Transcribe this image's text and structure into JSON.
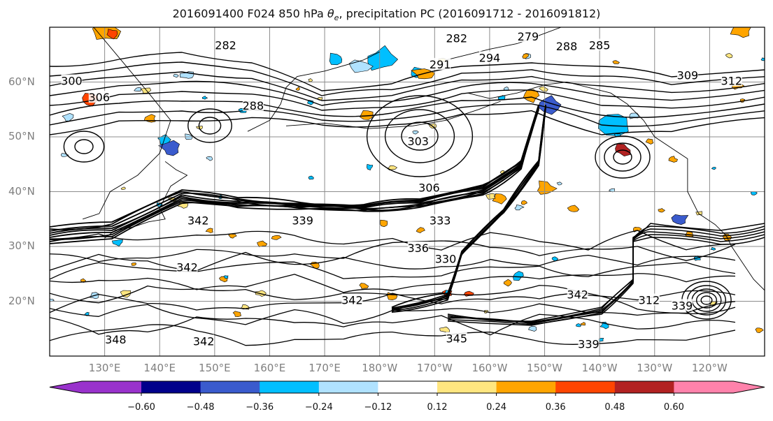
{
  "title": "2016091400 F024 850 hPa θe, precipitation PC (2016091712 - 2016091812)",
  "lat_labels": [
    {
      "text": "60°N",
      "lat": 60
    },
    {
      "text": "50°N",
      "lat": 50
    },
    {
      "text": "40°N",
      "lat": 40
    },
    {
      "text": "30°N",
      "lat": 30
    },
    {
      "text": "20°N",
      "lat": 20
    }
  ],
  "lon_labels": [
    {
      "text": "130°E",
      "lon": 130
    },
    {
      "text": "140°E",
      "lon": 140
    },
    {
      "text": "150°E",
      "lon": 150
    },
    {
      "text": "160°E",
      "lon": 160
    },
    {
      "text": "170°E",
      "lon": 170
    },
    {
      "text": "180°W",
      "lon": 180
    },
    {
      "text": "170°W",
      "lon": 190
    },
    {
      "text": "160°W",
      "lon": 200
    },
    {
      "text": "150°W",
      "lon": 210
    },
    {
      "text": "140°W",
      "lon": 220
    },
    {
      "text": "130°W",
      "lon": 230
    },
    {
      "text": "120°W",
      "lon": 240
    }
  ],
  "map_extent": {
    "lon_min": 120,
    "lon_max": 250,
    "lat_min": 10,
    "lat_max": 70
  },
  "contour_labels": [
    {
      "text": "282",
      "lon": 152,
      "lat": 66.5
    },
    {
      "text": "282",
      "lon": 194,
      "lat": 67.8
    },
    {
      "text": "279",
      "lon": 207,
      "lat": 68.1
    },
    {
      "text": "288",
      "lon": 214,
      "lat": 66.3
    },
    {
      "text": "285",
      "lon": 220,
      "lat": 66.5
    },
    {
      "text": "291",
      "lon": 191,
      "lat": 63.0
    },
    {
      "text": "294",
      "lon": 200,
      "lat": 64.2
    },
    {
      "text": "300",
      "lon": 124,
      "lat": 60.0
    },
    {
      "text": "306",
      "lon": 129,
      "lat": 57.0
    },
    {
      "text": "288",
      "lon": 157,
      "lat": 55.5
    },
    {
      "text": "303",
      "lon": 187,
      "lat": 49.0
    },
    {
      "text": "306",
      "lon": 189,
      "lat": 40.5
    },
    {
      "text": "309",
      "lon": 236,
      "lat": 61.0
    },
    {
      "text": "312",
      "lon": 244,
      "lat": 60.0
    },
    {
      "text": "342",
      "lon": 147,
      "lat": 34.5
    },
    {
      "text": "339",
      "lon": 166,
      "lat": 34.5
    },
    {
      "text": "333",
      "lon": 191,
      "lat": 34.5
    },
    {
      "text": "336",
      "lon": 187,
      "lat": 29.5
    },
    {
      "text": "330",
      "lon": 192,
      "lat": 27.5
    },
    {
      "text": "342",
      "lon": 145,
      "lat": 26.0
    },
    {
      "text": "342",
      "lon": 175,
      "lat": 20.0
    },
    {
      "text": "342",
      "lon": 216,
      "lat": 21.0
    },
    {
      "text": "339",
      "lon": 235,
      "lat": 19.0
    },
    {
      "text": "312",
      "lon": 229,
      "lat": 20.0
    },
    {
      "text": "339",
      "lon": 218,
      "lat": 12.0
    },
    {
      "text": "345",
      "lon": 194,
      "lat": 13.0
    },
    {
      "text": "342",
      "lon": 148,
      "lat": 12.5
    },
    {
      "text": "348",
      "lon": 132,
      "lat": 12.8
    }
  ],
  "colorbar": {
    "colors": [
      "#9932cc",
      "#00008b",
      "#3a5bcd",
      "#00bfff",
      "#b0e2ff",
      "#ffffff",
      "#ffe680",
      "#ffa500",
      "#ff4500",
      "#b22222",
      "#ff82ab"
    ],
    "tick_labels": [
      "−0.60",
      "−0.48",
      "−0.36",
      "−0.24",
      "−0.12",
      "0.12",
      "0.24",
      "0.36",
      "0.48",
      "0.60"
    ]
  },
  "colors": {
    "contour": "#000000",
    "grid": "#8c8c8c",
    "coast": "#000000"
  }
}
